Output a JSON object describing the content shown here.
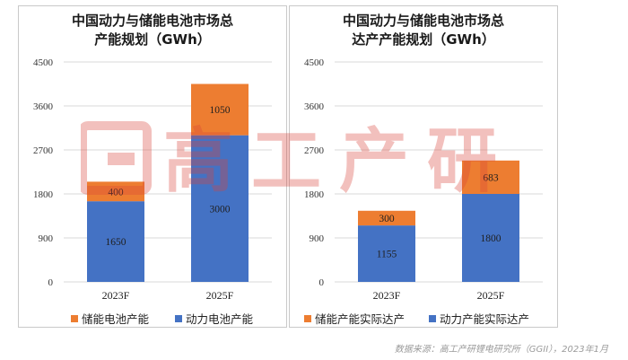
{
  "chart_data": [
    {
      "type": "bar",
      "stacked": true,
      "title_lines": [
        "中国动力与储能电池市场总",
        "产能规划（GWh）"
      ],
      "categories": [
        "2023F",
        "2025F"
      ],
      "ylim": [
        0,
        4500
      ],
      "yticks": [
        "4500",
        "3600",
        "2700",
        "1800",
        "900",
        "0"
      ],
      "ytick_values": [
        4500,
        3600,
        2700,
        1800,
        900,
        0
      ],
      "series": [
        {
          "name": "动力电池产能",
          "color": "#4472c4",
          "values": [
            1650,
            3000
          ],
          "labels": [
            "1650",
            "3000"
          ]
        },
        {
          "name": "储能电池产能",
          "color": "#ed7d31",
          "values": [
            400,
            1050
          ],
          "labels": [
            "400",
            "1050"
          ]
        }
      ],
      "legend": [
        "储能电池产能",
        "动力电池产能"
      ]
    },
    {
      "type": "bar",
      "stacked": true,
      "title_lines": [
        "中国动力与储能电池市场总",
        "达产产能规划（GWh）"
      ],
      "categories": [
        "2023F",
        "2025F"
      ],
      "ylim": [
        0,
        4500
      ],
      "yticks": [
        "4500",
        "3600",
        "2700",
        "1800",
        "900",
        "0"
      ],
      "ytick_values": [
        4500,
        3600,
        2700,
        1800,
        900,
        0
      ],
      "series": [
        {
          "name": "动力产能实际达产",
          "color": "#4472c4",
          "values": [
            1155,
            1800
          ],
          "labels": [
            "1155",
            "1800"
          ]
        },
        {
          "name": "储能产能实际达产",
          "color": "#ed7d31",
          "values": [
            300,
            683
          ],
          "labels": [
            "300",
            "683"
          ]
        }
      ],
      "legend": [
        "储能产能实际达产",
        "动力产能实际达产"
      ]
    }
  ],
  "watermark": {
    "text": "高工产研",
    "color": "#d9443a"
  },
  "source": "数据来源：高工产研锂电研究所（GGII），2023年1月"
}
